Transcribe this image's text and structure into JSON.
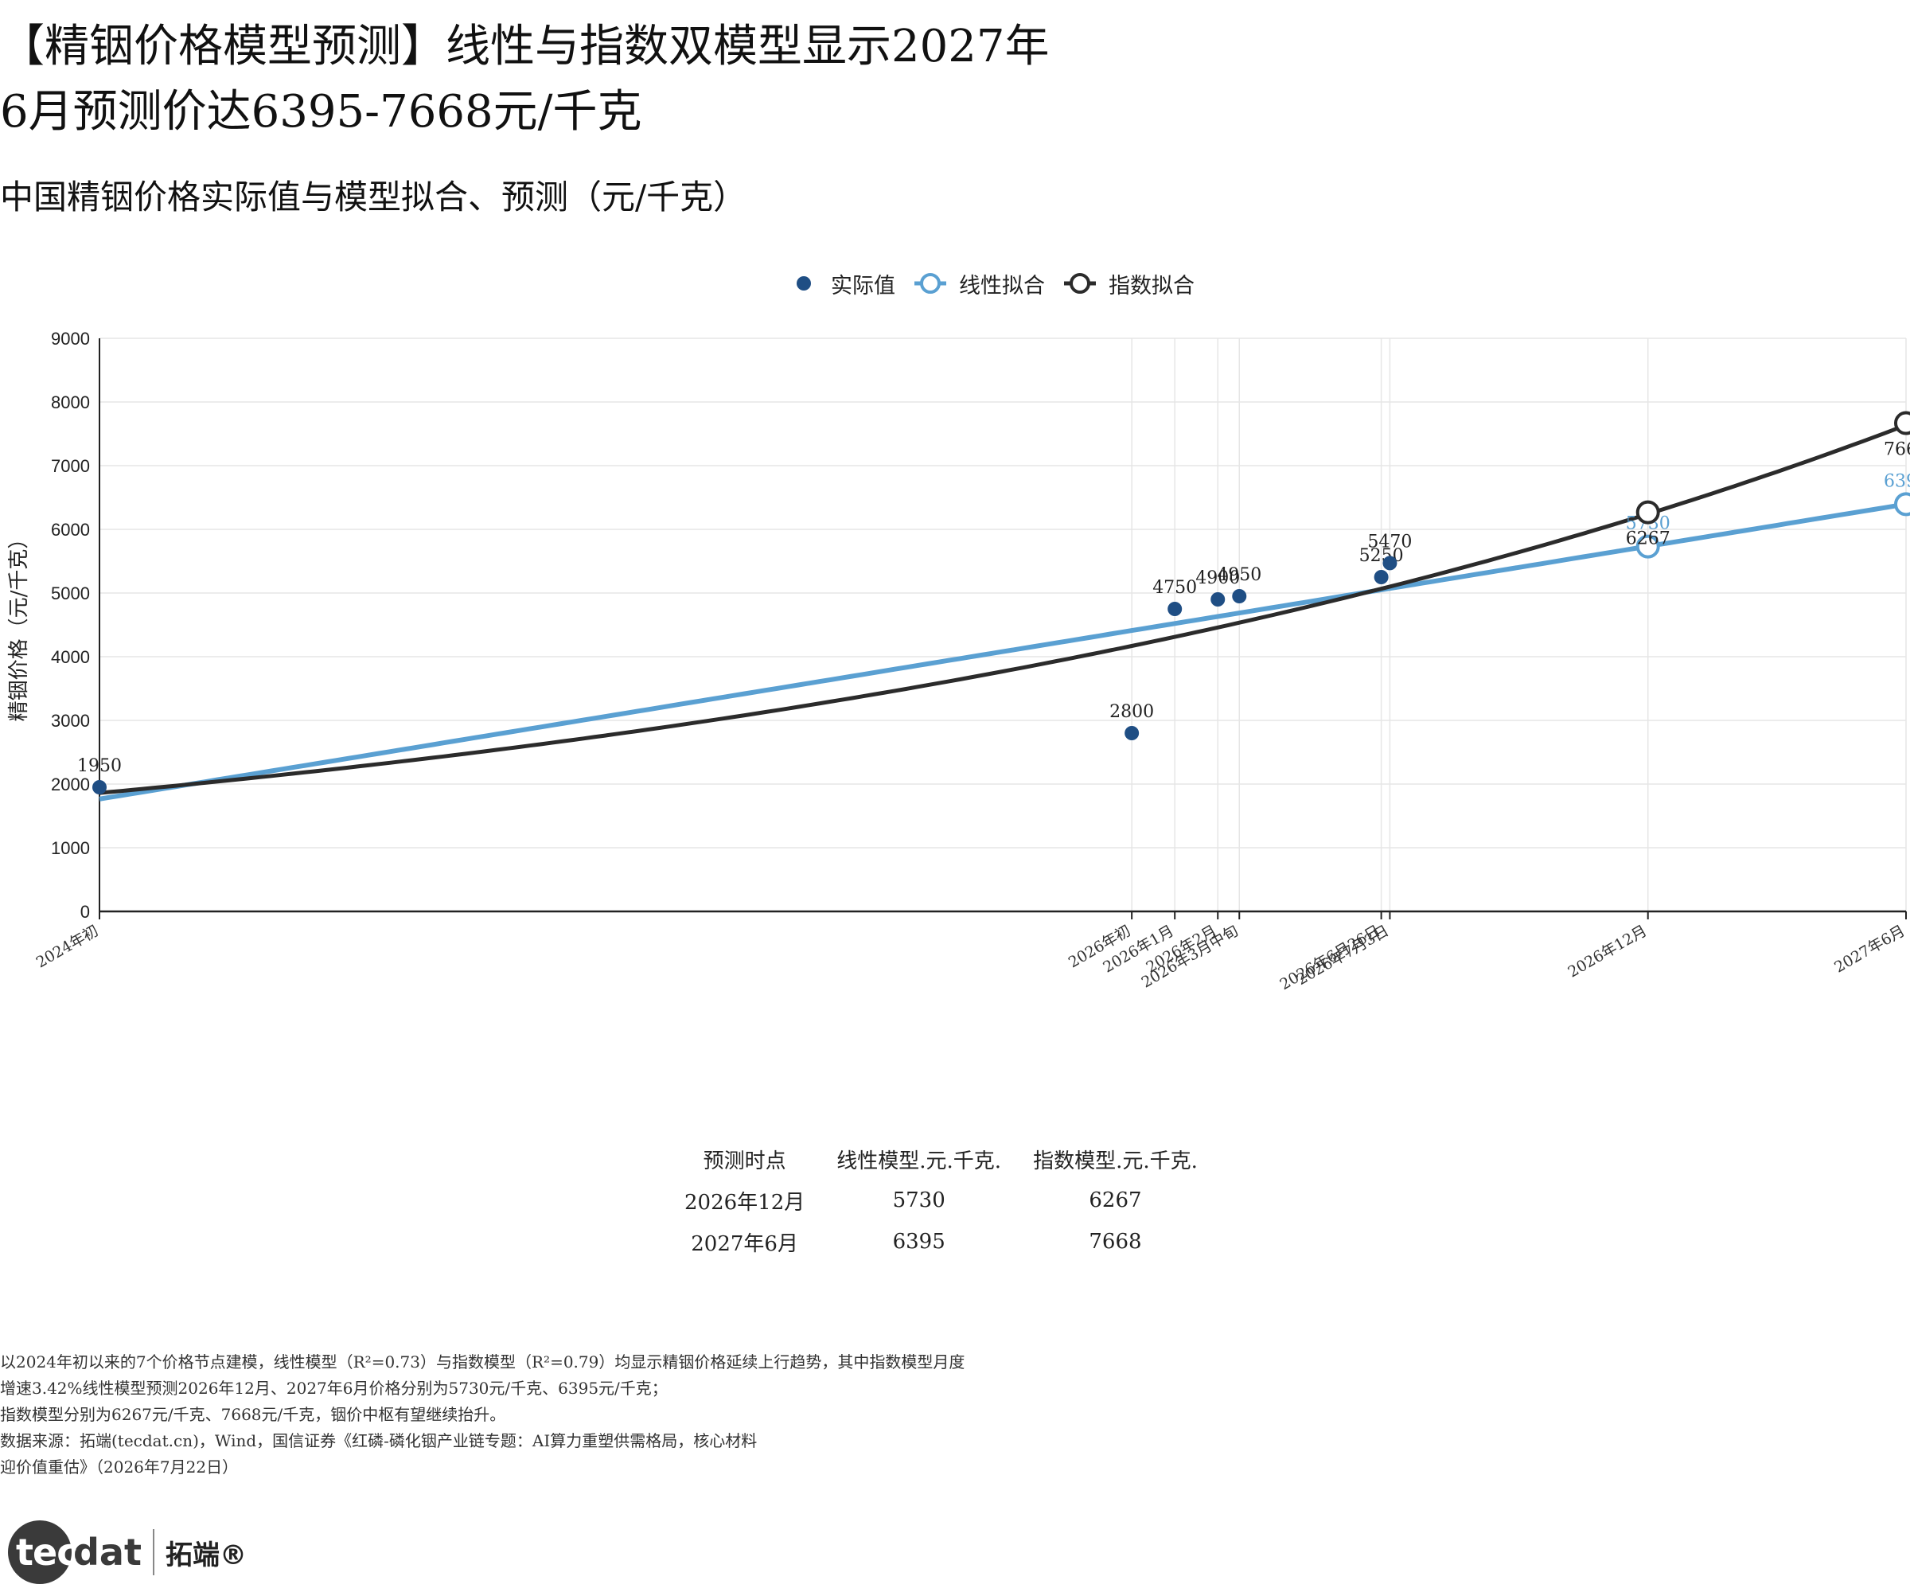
{
  "title_lines": [
    "【精铟价格模型预测】线性与指数双模型显示2027年",
    "6月预测价达6395-7668元/千克"
  ],
  "subtitle": "中国精铟价格实际值与模型拟合、预测（元/千克）",
  "legend": {
    "actual": "实际值",
    "linear": "线性拟合",
    "exp": "指数拟合"
  },
  "colors": {
    "actual": "#1f4e84",
    "linear": "#5aa0d2",
    "exp": "#2b2b2b",
    "grid": "#e6e6e6"
  },
  "chart_data": {
    "type": "line",
    "ylabel": "精铟价格（元/千克）",
    "ylim": [
      0,
      9000
    ],
    "yticks": [
      0,
      1000,
      2000,
      3000,
      4000,
      5000,
      6000,
      7000,
      8000,
      9000
    ],
    "x_months": [
      0,
      24,
      25,
      26,
      26.5,
      29.8,
      30,
      36,
      42
    ],
    "x_tick_labels": [
      "2024年初",
      "2026年初",
      "2026年1月",
      "2026年2月",
      "2026年3月中旬",
      "2026年6月26日",
      "2026年7月3日",
      "2026年12月",
      "2027年6月"
    ],
    "actual": {
      "name": "实际值",
      "x": [
        0,
        24,
        25,
        26,
        26.5,
        29.8,
        30
      ],
      "y": [
        1950,
        2800,
        4750,
        4900,
        4950,
        5250,
        5470
      ],
      "labels": [
        "1950",
        "2800",
        "4750",
        "4900",
        "4950",
        "5250",
        "5470"
      ]
    },
    "linear_fit": {
      "name": "线性拟合",
      "x_range": [
        0,
        42
      ],
      "intercept": 1765,
      "slope": 110.24
    },
    "exp_fit": {
      "name": "指数拟合",
      "x_range": [
        0,
        42
      ],
      "a": 1860,
      "monthly_growth": 0.0342
    },
    "forecast_points": [
      {
        "x": 36,
        "linear": 5730,
        "exp": 6267
      },
      {
        "x": 42,
        "linear": 6395,
        "exp": 7668
      }
    ]
  },
  "table": {
    "headers": [
      "预测时点",
      "线性模型.元.千克.",
      "指数模型.元.千克."
    ],
    "rows": [
      [
        "2026年12月",
        "5730",
        "6267"
      ],
      [
        "2027年6月",
        "6395",
        "7668"
      ]
    ]
  },
  "notes": [
    "以2024年初以来的7个价格节点建模，线性模型（R²=0.73）与指数模型（R²=0.79）均显示精铟价格延续上行趋势，其中指数模型月度",
    "增速3.42%线性模型预测2026年12月、2027年6月价格分别为5730元/千克、6395元/千克；",
    "指数模型分别为6267元/千克、7668元/千克，铟价中枢有望继续抬升。",
    "数据来源：拓端(tecdat.cn)，Wind，国信证券《红磷-磷化铟产业链专题：AI算力重塑供需格局，核心材料",
    "迎价值重估》（2026年7月22日）"
  ],
  "logo": {
    "tec": "tec",
    "dat": "dat",
    "cn": "拓端®"
  }
}
